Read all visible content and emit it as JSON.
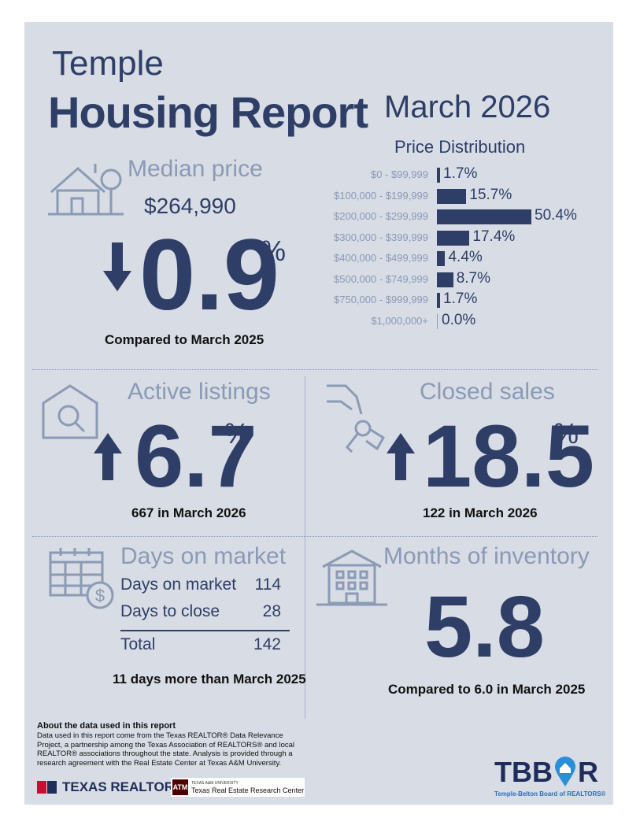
{
  "header": {
    "city": "Temple",
    "report_title": "Housing Report",
    "month": "March 2026"
  },
  "median_price": {
    "title": "Median price",
    "value": "$264,990",
    "change": "0.9",
    "percent_sign": "%",
    "direction": "down",
    "comparison": "Compared to March 2025"
  },
  "price_distribution": {
    "title": "Price Distribution",
    "rows": [
      {
        "range": "$0 - $99,999",
        "percent": 1.7,
        "label": "1.7%"
      },
      {
        "range": "$100,000 - $199,999",
        "percent": 15.7,
        "label": "15.7%"
      },
      {
        "range": "$200,000 - $299,999",
        "percent": 50.4,
        "label": "50.4%"
      },
      {
        "range": "$300,000 - $399,999",
        "percent": 17.4,
        "label": "17.4%"
      },
      {
        "range": "$400,000 - $499,999",
        "percent": 4.4,
        "label": "4.4%"
      },
      {
        "range": "$500,000 - $749,999",
        "percent": 8.7,
        "label": "8.7%"
      },
      {
        "range": "$750,000 - $999,999",
        "percent": 1.7,
        "label": "1.7%"
      },
      {
        "range": "$1,000,000+",
        "percent": 0.0,
        "label": "0.0%"
      }
    ]
  },
  "active_listings": {
    "title": "Active listings",
    "change": "6.7",
    "percent_sign": "%",
    "direction": "up",
    "detail": "667 in March 2026"
  },
  "closed_sales": {
    "title": "Closed sales",
    "change": "18.5",
    "percent_sign": "%",
    "direction": "up",
    "detail": "122 in March 2026"
  },
  "days_on_market": {
    "title": "Days on market",
    "rows": [
      {
        "label": "Days on market",
        "value": "114"
      },
      {
        "label": "Days to close",
        "value": "28"
      }
    ],
    "total_label": "Total",
    "total_value": "142",
    "comparison": "11 days more than March 2025"
  },
  "months_of_inventory": {
    "title": "Months of inventory",
    "value": "5.8",
    "comparison": "Compared to 6.0 in March 2025"
  },
  "about": {
    "heading": "About the data used in this report",
    "body": "Data used in this report come from the Texas REALTOR® Data Relevance Project, a partnership among the Texas Association of REALTORS® and local REALTOR® associations throughout the state. Analysis is provided through a research agreement with the Real Estate Center at Texas A&M University."
  },
  "logos": {
    "texas_realtors": "TEXAS REALTORS",
    "tamu_small": "TEXAS A&M UNIVERSITY",
    "tamu_center": "Texas Real Estate Research Center",
    "tbbor_left": "TBB",
    "tbbor_right": "R",
    "tbbor_sub": "Temple-Belton Board of REALTORS®"
  },
  "colors": {
    "navy": "#2e3e66",
    "muted": "#8b9ab5",
    "panel": "#d7dce5",
    "accent_blue": "#2a8fd8"
  }
}
